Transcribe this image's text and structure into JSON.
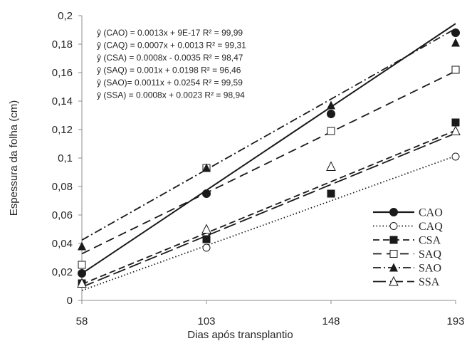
{
  "chart_data": {
    "type": "line",
    "title": "",
    "xlabel": "Dias após transplantio",
    "ylabel": "Espessura da folha (cm)",
    "x": [
      58,
      103,
      148,
      193
    ],
    "x_ticks": [
      "58",
      "103",
      "148",
      "193"
    ],
    "y_ticks": [
      "0",
      "0,02",
      "0,04",
      "0,06",
      "0,08",
      "0,1",
      "0,12",
      "0,14",
      "0,16",
      "0,18",
      "0,2"
    ],
    "ylim": [
      0,
      0.2
    ],
    "grid": false,
    "legend_position": "bottom-right",
    "series": [
      {
        "name": "CAO",
        "values": [
          0.019,
          0.075,
          0.131,
          0.188
        ],
        "marker": "filled-circle",
        "line": "solid",
        "fit": [
          0.0013,
          -0.0565
        ]
      },
      {
        "name": "CAQ",
        "values": [
          0.012,
          0.037,
          0.075,
          0.101
        ],
        "marker": "open-circle",
        "line": "dotted",
        "fit": [
          0.0007,
          -0.0336
        ]
      },
      {
        "name": "CSA",
        "values": [
          0.012,
          0.043,
          0.075,
          0.125
        ],
        "marker": "filled-square",
        "line": "short-dash",
        "fit": [
          0.0008,
          -0.035
        ]
      },
      {
        "name": "SAQ",
        "values": [
          0.025,
          0.093,
          0.119,
          0.162
        ],
        "marker": "open-square",
        "line": "dash",
        "fit": [
          0.00095,
          -0.0223
        ]
      },
      {
        "name": "SAO",
        "values": [
          0.038,
          0.093,
          0.137,
          0.181
        ],
        "marker": "filled-triangle",
        "line": "dash-dot",
        "fit": [
          0.0011,
          -0.0214
        ]
      },
      {
        "name": "SSA",
        "values": [
          0.012,
          0.05,
          0.094,
          0.119
        ],
        "marker": "open-triangle",
        "line": "long-dash",
        "fit": [
          0.0008,
          -0.037
        ]
      }
    ],
    "annotations": [
      "ŷ (CAO) = 0.0013x + 9E-17 R² = 99,99",
      "ŷ (CAQ) = 0.0007x + 0.0013 R² = 99,31",
      "ŷ (CSA) = 0.0008x - 0.0035 R² = 98,47",
      "ŷ (SAQ) = 0.001x + 0.0198 R² = 96,46",
      "ŷ (SAO)= 0.0011x + 0.0254 R² = 99,59",
      "ŷ (SSA) = 0.0008x + 0.0023 R² = 98,94"
    ]
  }
}
